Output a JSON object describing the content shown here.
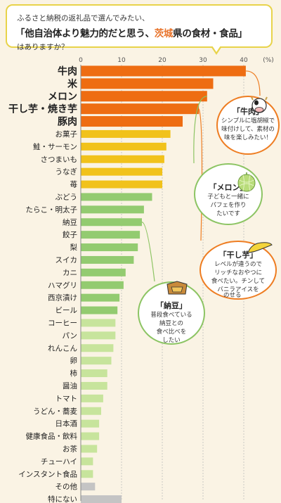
{
  "question": {
    "pre": "ふるさと納税の返礼品で選んでみたい、",
    "main_a": "「他自治体より魅力的だと思う、",
    "main_hl": "茨城",
    "main_b": "県の食材・食品」",
    "post": "はありますか？"
  },
  "axis": {
    "ticks": [
      "0",
      "10",
      "20",
      "30",
      "40"
    ],
    "unit": "(%)"
  },
  "colors": {
    "orange": "#ee6d12",
    "yellow": "#f1c21b",
    "green": "#93cb70",
    "lightgreen": "#c7e49c",
    "gray": "#c4c4c4",
    "bubble_orange": "#ee7d22",
    "bubble_green": "#8cc463"
  },
  "chart_data": {
    "type": "bar",
    "orientation": "horizontal",
    "unit": "%",
    "xlim": [
      0,
      45
    ],
    "categories": [
      "牛肉",
      "米",
      "メロン",
      "干し芋・焼き芋",
      "豚肉",
      "お菓子",
      "鮭・サーモン",
      "さつまいも",
      "うなぎ",
      "苺",
      "ぶどう",
      "たらこ・明太子",
      "納豆",
      "餃子",
      "梨",
      "スイカ",
      "カニ",
      "ハマグリ",
      "西京漬け",
      "ビール",
      "コーヒー",
      "パン",
      "れんこん",
      "卵",
      "柿",
      "醤油",
      "トマト",
      "うどん・蕎麦",
      "日本酒",
      "健康食品・飲料",
      "お茶",
      "チューハイ",
      "インスタント食品",
      "その他",
      "特にない"
    ],
    "values": [
      40.5,
      32.5,
      31,
      29,
      25,
      22,
      21,
      20.5,
      20,
      20,
      17.5,
      15.5,
      15,
      14.5,
      14,
      13,
      11,
      10.5,
      9.5,
      9,
      8.5,
      8.5,
      8,
      7.5,
      6.5,
      6.5,
      5.5,
      5,
      4.5,
      4.5,
      4,
      3,
      3,
      3.5,
      10
    ],
    "color_groups": [
      "orange",
      "orange",
      "orange",
      "orange",
      "orange",
      "yellow",
      "yellow",
      "yellow",
      "yellow",
      "yellow",
      "green",
      "green",
      "green",
      "green",
      "green",
      "green",
      "green",
      "green",
      "green",
      "green",
      "lightgreen",
      "lightgreen",
      "lightgreen",
      "lightgreen",
      "lightgreen",
      "lightgreen",
      "lightgreen",
      "lightgreen",
      "lightgreen",
      "lightgreen",
      "lightgreen",
      "lightgreen",
      "lightgreen",
      "gray",
      "gray"
    ],
    "title": "",
    "xlabel": "",
    "ylabel": ""
  },
  "callouts": [
    {
      "title": "「牛肉」",
      "text": [
        "シンプルに塩胡椒で",
        "味付けして、素材の",
        "味を楽しみたい！"
      ]
    },
    {
      "title": "「メロン」",
      "text": [
        "子どもと一緒に",
        "パフェを作り",
        "たいです"
      ]
    },
    {
      "title": "「干し芋」",
      "text": [
        "レベルが違うので",
        "リッチなおやつに",
        "食べたい。チンして",
        "バニラアイスを",
        "のせる"
      ]
    },
    {
      "title": "「納豆」",
      "text": [
        "普段食べている",
        "納豆との",
        "食べ比べを",
        "したい"
      ]
    }
  ]
}
